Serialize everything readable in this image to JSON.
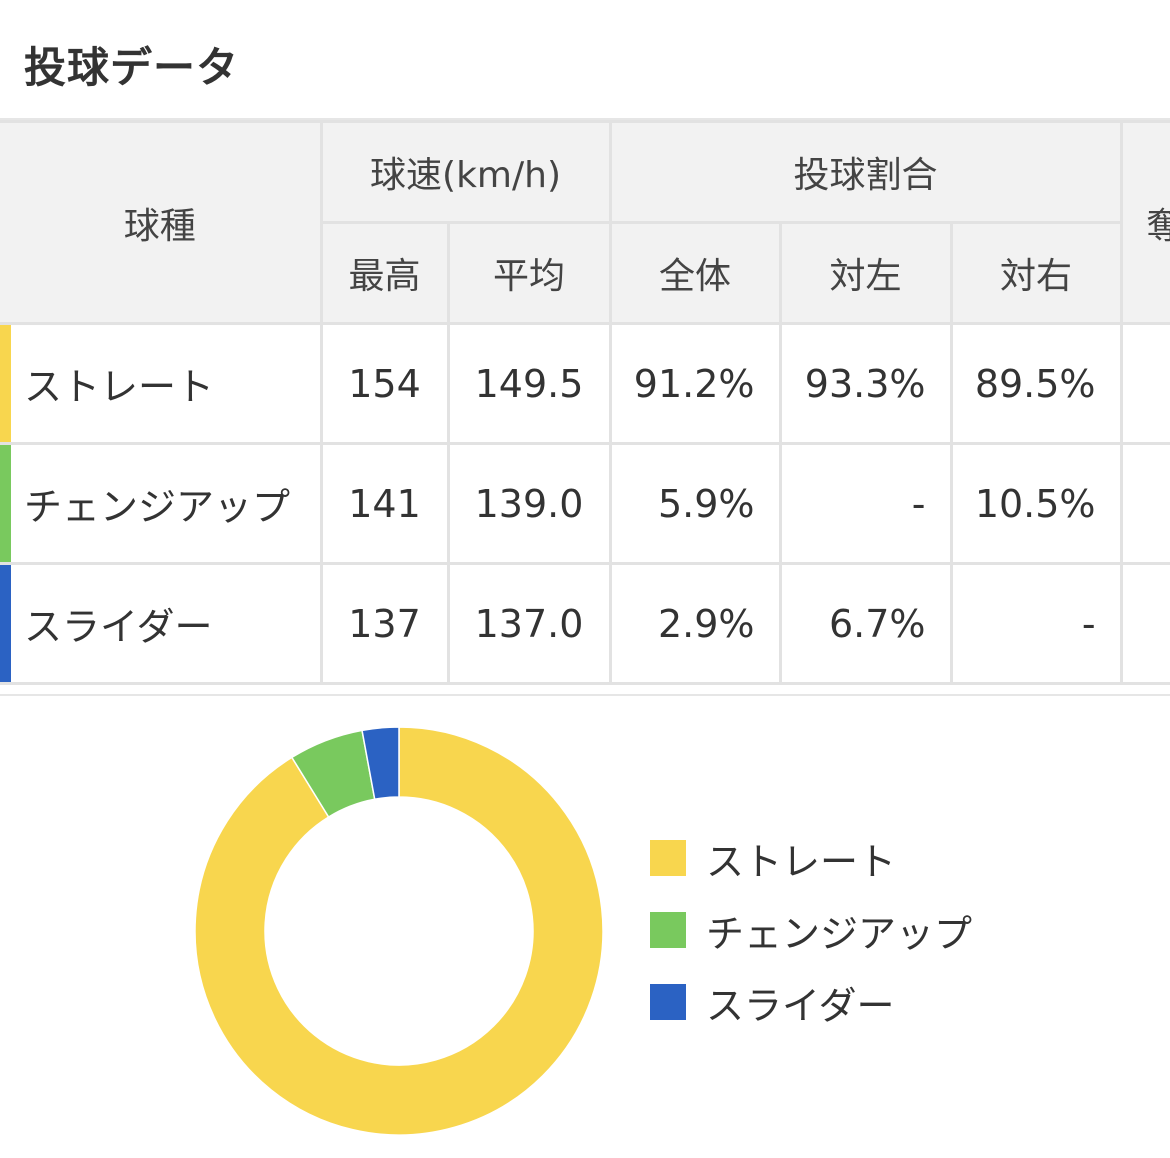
{
  "page": {
    "title": "投球データ"
  },
  "table": {
    "col_pitch": "球種",
    "group_speed": "球速(km/h)",
    "group_ratio": "投球割合",
    "group_extra": "奪",
    "sub_max": "最高",
    "sub_avg": "平均",
    "sub_all": "全体",
    "sub_left": "対左",
    "sub_right": "対右",
    "rows": [
      {
        "name": "ストレート",
        "color": "#f8d64e",
        "max": "154",
        "avg": "149.5",
        "all": "91.2%",
        "left": "93.3%",
        "right": "89.5%"
      },
      {
        "name": "チェンジアップ",
        "color": "#79c95e",
        "max": "141",
        "avg": "139.0",
        "all": "5.9%",
        "left": "-",
        "right": "10.5%"
      },
      {
        "name": "スライダー",
        "color": "#2b62c3",
        "max": "137",
        "avg": "137.0",
        "all": "2.9%",
        "left": "6.7%",
        "right": "-"
      }
    ]
  },
  "chart_data": {
    "type": "pie",
    "style": "donut",
    "categories": [
      "ストレート",
      "チェンジアップ",
      "スライダー"
    ],
    "values": [
      91.2,
      5.9,
      2.9
    ],
    "colors": [
      "#f8d64e",
      "#79c95e",
      "#2b62c3"
    ],
    "legend_position": "right",
    "legend": [
      "ストレート",
      "チェンジアップ",
      "スライダー"
    ]
  }
}
